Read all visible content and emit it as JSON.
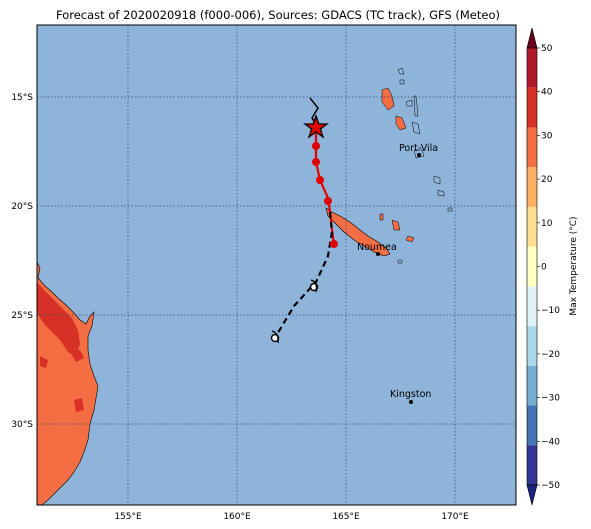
{
  "title": "Forecast of 2020020918 (f000-006), Sources: GDACS (TC track), GFS (Meteo)",
  "map": {
    "lon_ticks": [
      "155°E",
      "160°E",
      "165°E",
      "170°E"
    ],
    "lat_ticks": [
      "15°S",
      "20°S",
      "25°S",
      "30°S"
    ],
    "cities": [
      {
        "name": "Port-Vila"
      },
      {
        "name": "Noumea"
      },
      {
        "name": "Kingston"
      }
    ],
    "colors": {
      "ocean": "#8fb4d9",
      "land_warm": "#f46d43",
      "land_hot": "#d73027"
    }
  },
  "colorbar": {
    "label": "Max Temperature (°C)",
    "ticks": [
      "50",
      "40",
      "30",
      "20",
      "10",
      "0",
      "−10",
      "−20",
      "−30",
      "−40",
      "−50"
    ],
    "colors": [
      "#67001f",
      "#b2182b",
      "#d73027",
      "#f46d43",
      "#fdae61",
      "#fee090",
      "#ffffbf",
      "#e0f3f8",
      "#abd9e9",
      "#74add1",
      "#4575b4",
      "#313695",
      "#1a237e"
    ]
  }
}
